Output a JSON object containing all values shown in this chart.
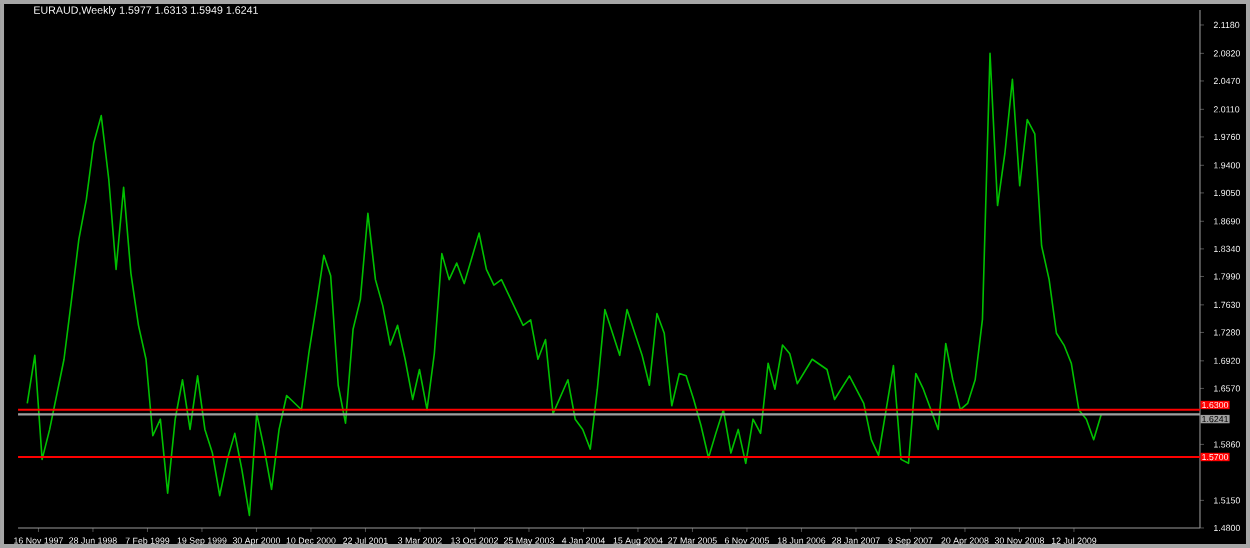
{
  "chart_data": {
    "type": "line",
    "title": "EURAUD,Weekly  1.5977 1.6313 1.5949 1.6241",
    "x": [
      "1997-10",
      "1997-11",
      "1997-12",
      "1998-01",
      "1998-03",
      "1998-04",
      "1998-05",
      "1998-06",
      "1998-07",
      "1998-08",
      "1998-09",
      "1998-10",
      "1998-11",
      "1998-12",
      "1999-01",
      "1999-02",
      "1999-03",
      "1999-04",
      "1999-05",
      "1999-06",
      "1999-07",
      "1999-08",
      "1999-09",
      "1999-10",
      "1999-11",
      "1999-12",
      "2000-01",
      "2000-02",
      "2000-03",
      "2000-04",
      "2000-05",
      "2000-06",
      "2000-07",
      "2000-08",
      "2000-09",
      "2000-11",
      "2000-12",
      "2001-01",
      "2001-02",
      "2001-03",
      "2001-04",
      "2001-05",
      "2001-06",
      "2001-07",
      "2001-08",
      "2001-09",
      "2001-10",
      "2001-11",
      "2001-12",
      "2002-01",
      "2002-02",
      "2002-03",
      "2002-04",
      "2002-05",
      "2002-06",
      "2002-07",
      "2002-08",
      "2002-09",
      "2002-11",
      "2002-12",
      "2003-01",
      "2003-02",
      "2003-05",
      "2003-06",
      "2003-07",
      "2003-08",
      "2003-09",
      "2003-11",
      "2003-12",
      "2004-01",
      "2004-02",
      "2004-03",
      "2004-04",
      "2004-06",
      "2004-07",
      "2004-09",
      "2004-10",
      "2004-11",
      "2004-12",
      "2005-01",
      "2005-02",
      "2005-03",
      "2005-04",
      "2005-05",
      "2005-06",
      "2005-07",
      "2005-08",
      "2005-09",
      "2005-10",
      "2005-11",
      "2005-12",
      "2006-01",
      "2006-02",
      "2006-03",
      "2006-04",
      "2006-05",
      "2006-06",
      "2006-08",
      "2006-10",
      "2006-11",
      "2007-01",
      "2007-03",
      "2007-04",
      "2007-05",
      "2007-07",
      "2007-08",
      "2007-09",
      "2007-10",
      "2007-11",
      "2008-01",
      "2008-02",
      "2008-03",
      "2008-04",
      "2008-05",
      "2008-06",
      "2008-07",
      "2008-08",
      "2008-09",
      "2008-10",
      "2008-11",
      "2008-12",
      "2009-01",
      "2009-02",
      "2009-03",
      "2009-04",
      "2009-05",
      "2009-06",
      "2009-07",
      "2009-08",
      "2009-09",
      "2009-10",
      "2009-11"
    ],
    "series": [
      {
        "color": "#00c000",
        "values": [
          1.638,
          1.699,
          1.567,
          1.605,
          1.694,
          1.77,
          1.846,
          1.897,
          1.968,
          2.003,
          1.922,
          1.808,
          1.912,
          1.803,
          1.737,
          1.694,
          1.597,
          1.618,
          1.524,
          1.618,
          1.668,
          1.605,
          1.673,
          1.605,
          1.575,
          1.521,
          1.567,
          1.6,
          1.554,
          1.496,
          1.625,
          1.58,
          1.529,
          1.605,
          1.648,
          1.63,
          1.701,
          1.762,
          1.826,
          1.8,
          1.661,
          1.613,
          1.732,
          1.77,
          1.879,
          1.795,
          1.762,
          1.712,
          1.737,
          1.694,
          1.643,
          1.681,
          1.63,
          1.701,
          1.828,
          1.795,
          1.816,
          1.79,
          1.854,
          1.808,
          1.788,
          1.795,
          1.737,
          1.744,
          1.694,
          1.719,
          1.625,
          1.668,
          1.618,
          1.605,
          1.58,
          1.656,
          1.757,
          1.699,
          1.757,
          1.699,
          1.661,
          1.752,
          1.727,
          1.635,
          1.676,
          1.673,
          1.643,
          1.61,
          1.569,
          1.6,
          1.63,
          1.575,
          1.605,
          1.562,
          1.618,
          1.6,
          1.689,
          1.656,
          1.712,
          1.701,
          1.663,
          1.694,
          1.681,
          1.643,
          1.673,
          1.638,
          1.592,
          1.572,
          1.686,
          1.567,
          1.562,
          1.676,
          1.656,
          1.605,
          1.714,
          1.668,
          1.63,
          1.638,
          1.668,
          1.745,
          2.082,
          1.889,
          1.955,
          2.049,
          1.914,
          1.998,
          1.98,
          1.838,
          1.795,
          1.727,
          1.712,
          1.689,
          1.63,
          1.618,
          1.592,
          1.624
        ]
      }
    ],
    "xlim": [
      "1997-08-24",
      "2010-12-12"
    ],
    "xticks": [
      {
        "value": "1997-11-16",
        "label": "16 Nov 1997"
      },
      {
        "value": "1998-06-28",
        "label": "28 Jun 1998"
      },
      {
        "value": "1999-02-07",
        "label": "7 Feb 1999"
      },
      {
        "value": "1999-09-19",
        "label": "19 Sep 1999"
      },
      {
        "value": "2000-04-30",
        "label": "30 Apr 2000"
      },
      {
        "value": "2000-12-10",
        "label": "10 Dec 2000"
      },
      {
        "value": "2001-07-22",
        "label": "22 Jul 2001"
      },
      {
        "value": "2002-03-03",
        "label": "3 Mar 2002"
      },
      {
        "value": "2002-10-13",
        "label": "13 Oct 2002"
      },
      {
        "value": "2003-05-25",
        "label": "25 May 2003"
      },
      {
        "value": "2004-01-04",
        "label": "4 Jan 2004"
      },
      {
        "value": "2004-08-15",
        "label": "15 Aug 2004"
      },
      {
        "value": "2005-03-27",
        "label": "27 Mar 2005"
      },
      {
        "value": "2005-11-06",
        "label": "6 Nov 2005"
      },
      {
        "value": "2006-06-18",
        "label": "18 Jun 2006"
      },
      {
        "value": "2007-01-28",
        "label": "28 Jan 2007"
      },
      {
        "value": "2007-09-09",
        "label": "9 Sep 2007"
      },
      {
        "value": "2008-04-20",
        "label": "20 Apr 2008"
      },
      {
        "value": "2008-11-30",
        "label": "30 Nov 2008"
      },
      {
        "value": "2009-07-12",
        "label": "12 Jul 2009"
      }
    ],
    "ylim": [
      1.48,
      2.137
    ],
    "yticks": [
      {
        "value": 2.118,
        "label": "2.1180"
      },
      {
        "value": 2.082,
        "label": "2.0820"
      },
      {
        "value": 2.047,
        "label": "2.0470"
      },
      {
        "value": 2.011,
        "label": "2.0110"
      },
      {
        "value": 1.976,
        "label": "1.9760"
      },
      {
        "value": 1.94,
        "label": "1.9400"
      },
      {
        "value": 1.905,
        "label": "1.9050"
      },
      {
        "value": 1.869,
        "label": "1.8690"
      },
      {
        "value": 1.834,
        "label": "1.8340"
      },
      {
        "value": 1.799,
        "label": "1.7990"
      },
      {
        "value": 1.763,
        "label": "1.7630"
      },
      {
        "value": 1.728,
        "label": "1.7280"
      },
      {
        "value": 1.692,
        "label": "1.6920"
      },
      {
        "value": 1.657,
        "label": "1.6570"
      },
      {
        "value": 1.586,
        "label": "1.5860"
      },
      {
        "value": 1.515,
        "label": "1.5150"
      },
      {
        "value": 1.48,
        "label": "1.4800"
      }
    ],
    "ref_lines": [
      {
        "axis": "y",
        "value": 1.63,
        "label": "1.6300",
        "color": "#ff0000"
      },
      {
        "axis": "y",
        "value": 1.6241,
        "label": "1.6241",
        "color": "#a0a0a0"
      },
      {
        "axis": "y",
        "value": 1.57,
        "label": "1.5700",
        "color": "#ff0000"
      }
    ],
    "marker": "none",
    "line_style": "solid"
  }
}
